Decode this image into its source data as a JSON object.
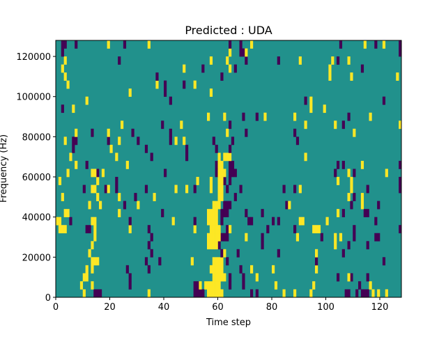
{
  "chart_data": {
    "type": "heatmap",
    "title": "Predicted : UDA",
    "xlabel": "Time step",
    "ylabel": "Frequency (Hz)",
    "xlim": [
      0,
      128
    ],
    "ylim": [
      0,
      128000
    ],
    "n_time_steps": 128,
    "n_freq_bins": 32,
    "freq_bin_hz": 4000,
    "xticks": [
      0,
      20,
      40,
      60,
      80,
      100,
      120
    ],
    "yticks": [
      0,
      20000,
      40000,
      60000,
      80000,
      100000,
      120000
    ],
    "colors": {
      "low": "#440154",
      "mid": "#21918c",
      "high": "#fde725"
    },
    "values_legend": {
      "low": -1,
      "mid": 0,
      "high": 1
    },
    "default_value": 0,
    "rows": [
      {
        "low": [
          14,
          15,
          16,
          51,
          52,
          53,
          54,
          72,
          74,
          107,
          108,
          111,
          113,
          114,
          115
        ],
        "high": [
          10,
          34,
          56,
          57,
          58,
          59,
          60,
          61,
          84,
          88,
          94,
          117,
          119,
          122
        ]
      },
      {
        "low": [
          27,
          51,
          52,
          64,
          69,
          112
        ],
        "high": [
          9,
          13,
          53,
          55,
          56,
          57,
          58,
          59,
          60,
          81,
          95,
          116
        ]
      },
      {
        "low": [
          27,
          64,
          69,
          104,
          109,
          115
        ],
        "high": [
          10,
          11,
          58,
          59,
          60,
          61,
          62,
          74,
          108
        ]
      },
      {
        "low": [
          26,
          34,
          68
        ],
        "high": [
          11,
          13,
          57,
          58,
          59,
          60,
          61,
          72,
          80,
          96
        ]
      },
      {
        "low": [
          33,
          38,
          63,
          96,
          121
        ],
        "high": [
          13,
          14,
          15,
          50,
          58,
          59,
          60,
          61
        ]
      },
      {
        "low": [
          35,
          61,
          67,
          82,
          106
        ],
        "high": [
          12,
          62,
          96
        ]
      },
      {
        "low": [
          34,
          60,
          76,
          108,
          115
        ],
        "high": [
          13,
          56,
          57,
          58,
          59,
          103
        ]
      },
      {
        "low": [
          35,
          61,
          62,
          63,
          76,
          98,
          110,
          118,
          119
        ],
        "high": [
          14,
          56,
          57,
          58,
          59,
          60,
          70,
          89,
          103,
          105
        ]
      },
      {
        "low": [
          11,
          12,
          34,
          63,
          78,
          88,
          110,
          127
        ],
        "high": [
          1,
          2,
          3,
          14,
          27,
          51,
          57,
          58,
          59,
          60,
          64,
          95,
          96,
          97
        ]
      },
      {
        "low": [
          5,
          27,
          51,
          61,
          71,
          72,
          80,
          82,
          118
        ],
        "high": [
          0,
          1,
          13,
          14,
          43,
          56,
          57,
          58,
          59,
          90,
          91,
          100
        ]
      },
      {
        "low": [
          39,
          61,
          62,
          63,
          70,
          76,
          106,
          114,
          115
        ],
        "high": [
          3,
          4,
          23,
          56,
          57,
          58,
          59,
          104
        ]
      },
      {
        "low": [
          25,
          62,
          63,
          64,
          85,
          109,
          119
        ],
        "high": [
          12,
          16,
          30,
          58,
          59,
          60,
          86,
          113
        ]
      },
      {
        "low": [
          29,
          66,
          110
        ],
        "high": [
          2,
          15,
          23,
          36,
          60,
          61,
          108,
          113
        ]
      },
      {
        "low": [
          10,
          18,
          22,
          33,
          51,
          63,
          68,
          84,
          88,
          115,
          127
        ],
        "high": [
          13,
          14,
          19,
          44,
          48,
          57,
          60,
          61,
          90,
          109
        ]
      },
      {
        "low": [
          22,
          62,
          64,
          127
        ],
        "high": [
          1,
          15,
          52,
          57,
          60,
          61,
          104,
          109
        ]
      },
      {
        "low": [
          15,
          40,
          59,
          64,
          65,
          66,
          103,
          110
        ],
        "high": [
          4,
          13,
          14,
          17,
          60,
          61,
          62,
          108,
          122
        ]
      },
      {
        "low": [
          11,
          59,
          64,
          65,
          104,
          106,
          127
        ],
        "high": [
          7,
          26,
          60,
          61,
          113
        ]
      },
      {
        "low": [
          35,
          48
        ],
        "high": [
          5,
          22,
          60,
          62,
          63,
          64,
          92
        ]
      },
      {
        "low": [
          6,
          33,
          48,
          59,
          64
        ],
        "high": [
          20
        ]
      },
      {
        "low": [
          6,
          7,
          19,
          30,
          42,
          58,
          65,
          89
        ],
        "high": [
          3,
          23,
          44,
          47
        ]
      },
      {
        "low": [
          13,
          28,
          42,
          70,
          88
        ],
        "high": [
          7,
          19,
          63,
          110
        ]
      },
      {
        "low": [
          39,
          64,
          106
        ],
        "high": [
          24,
          46,
          92,
          103,
          127
        ]
      },
      {
        "low": [
          69,
          74,
          108
        ],
        "high": [
          56,
          62,
          77,
          88,
          116
        ]
      },
      {
        "low": [
          2
        ],
        "high": [
          6,
          94,
          99
        ]
      },
      {
        "low": [
          42,
          92,
          121
        ],
        "high": [
          11,
          94
        ]
      },
      {
        "low": [
          40
        ],
        "high": [
          27,
          57
        ]
      },
      {
        "low": [
          40,
          47
        ],
        "high": [
          4,
          37,
          51
        ]
      },
      {
        "low": [
          37,
          61
        ],
        "high": [
          3,
          101,
          109,
          126
        ]
      },
      {
        "low": [
          54,
          66,
          113
        ],
        "high": [
          2,
          47,
          64,
          101
        ]
      },
      {
        "low": [
          23,
          70,
          82,
          104
        ],
        "high": [
          3,
          57,
          63,
          90,
          102,
          108
        ]
      },
      {
        "low": [
          2,
          68,
          69,
          127
        ],
        "high": [
          64,
          70
        ]
      },
      {
        "low": [
          2,
          3,
          7,
          25,
          64,
          68,
          105,
          118,
          127
        ],
        "high": [
          19,
          34,
          72,
          114,
          121
        ]
      }
    ]
  }
}
